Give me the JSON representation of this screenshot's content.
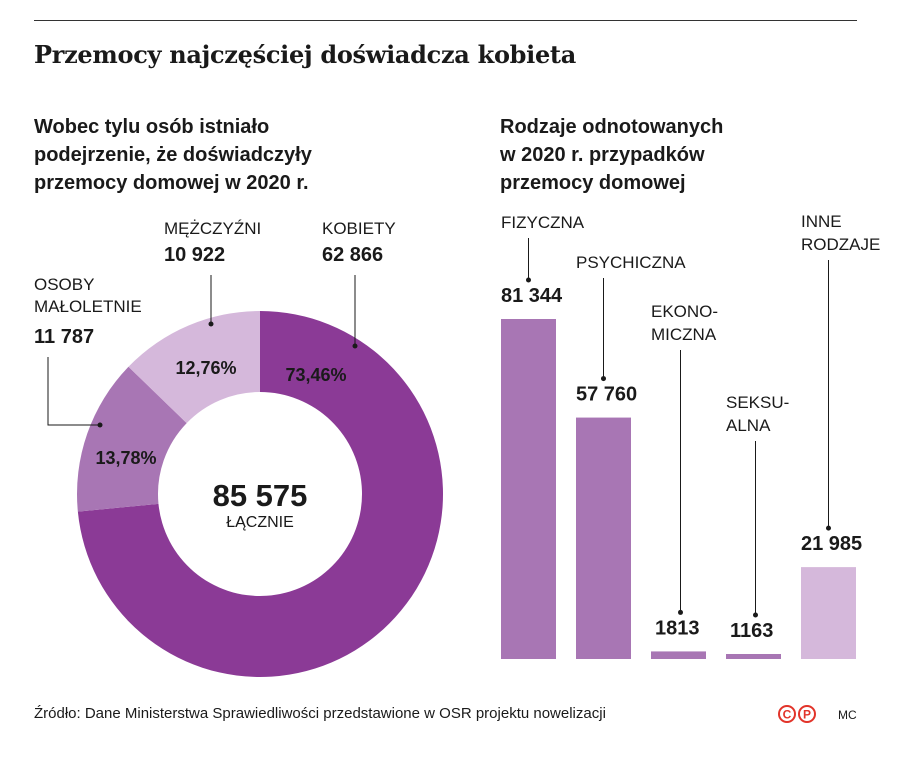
{
  "header": {
    "title": "Przemocy najczęściej doświadcza kobieta"
  },
  "chart_data": [
    {
      "type": "pie",
      "subtitle_lines": [
        "Wobec tylu osób istniało",
        "podejrzenie, że doświadczyły",
        "przemocy domowej w 2020 r."
      ],
      "center_value": "85 575",
      "center_label": "ŁĄCZNIE",
      "slices": [
        {
          "label_lines": [
            "KOBIETY"
          ],
          "value": 62866,
          "value_text": "62 866",
          "percent_text": "73,46%",
          "color": "#8b3a96"
        },
        {
          "label_lines": [
            "OSOBY",
            "MAŁOLETNIE"
          ],
          "value": 11787,
          "value_text": "11 787",
          "percent_text": "13,78%",
          "color": "#a876b4"
        },
        {
          "label_lines": [
            "MĘŻCZYŹNI"
          ],
          "value": 10922,
          "value_text": "10 922",
          "percent_text": "12,76%",
          "color": "#d5b8db"
        }
      ]
    },
    {
      "type": "bar",
      "subtitle_lines": [
        "Rodzaje odnotowanych",
        "w 2020 r. przypadków",
        "przemocy domowej"
      ],
      "categories": [
        {
          "label_lines": [
            "FIZYCZNA"
          ],
          "value": 81344,
          "value_text": "81 344",
          "color": "#a876b4"
        },
        {
          "label_lines": [
            "PSYCHICZNA"
          ],
          "value": 57760,
          "value_text": "57 760",
          "color": "#a876b4"
        },
        {
          "label_lines": [
            "EKONO-",
            "MICZNA"
          ],
          "value": 1813,
          "value_text": "1813",
          "color": "#a876b4"
        },
        {
          "label_lines": [
            "SEKSU-",
            "ALNA"
          ],
          "value": 1163,
          "value_text": "1163",
          "color": "#a876b4"
        },
        {
          "label_lines": [
            "INNE",
            "RODZAJE"
          ],
          "value": 21985,
          "value_text": "21 985",
          "color": "#d5b8db"
        }
      ],
      "ylim": [
        0,
        81344
      ]
    }
  ],
  "footer": {
    "source": "Źródło: Dane Ministerstwa Sprawiedliwości przedstawione w OSR projektu nowelizacji",
    "logo_text": [
      "C",
      "P"
    ],
    "logo_color": "#e2342a",
    "author": "MC"
  }
}
